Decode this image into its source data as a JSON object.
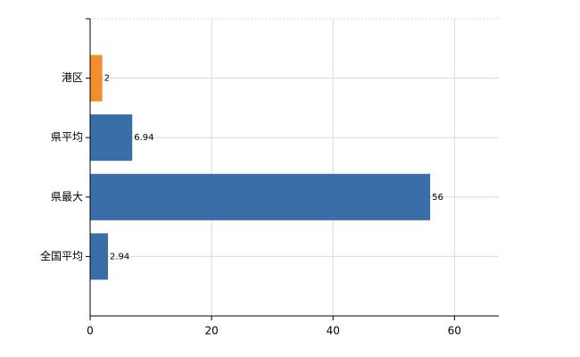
{
  "chart_data": {
    "type": "bar",
    "orientation": "horizontal",
    "categories": [
      "港区",
      "県平均",
      "県最大",
      "全国平均"
    ],
    "values": [
      2,
      6.94,
      56,
      2.94
    ],
    "colors": [
      "#f28e2b",
      "#3a6ea8",
      "#3a6ea8",
      "#3a6ea8"
    ],
    "xlim": [
      0,
      67.3
    ],
    "xticks": [
      0,
      20,
      40,
      60
    ],
    "grid": true
  }
}
